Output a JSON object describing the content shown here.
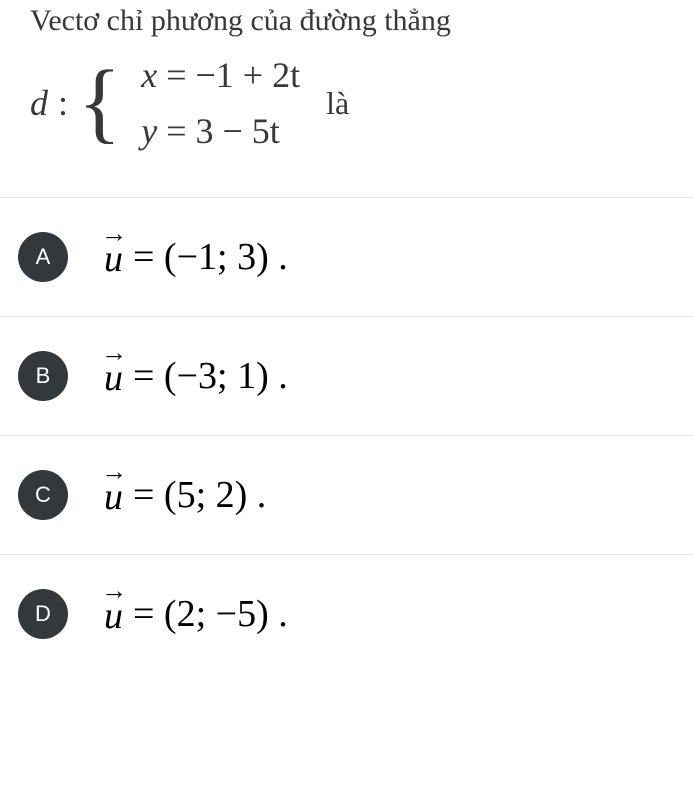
{
  "question": {
    "prompt_line1": "Vectơ chỉ phương của đường thẳng",
    "line_label": "d",
    "eq1_lhs": "x",
    "eq1_rhs": "= −1 + 2t",
    "eq2_lhs": "y",
    "eq2_rhs": "= 3 − 5t",
    "is_text": "là"
  },
  "options": [
    {
      "letter": "A",
      "vector_sym": "u",
      "value": "= (−1; 3) ."
    },
    {
      "letter": "B",
      "vector_sym": "u",
      "value": "= (−3; 1) ."
    },
    {
      "letter": "C",
      "vector_sym": "u",
      "value": "= (5; 2) ."
    },
    {
      "letter": "D",
      "vector_sym": "u",
      "value": "= (2; −5) ."
    }
  ],
  "style": {
    "background_color": "#ffffff",
    "text_color": "#383838",
    "badge_bg": "#33383d",
    "badge_fg": "#ffffff",
    "divider_color": "#e5e5e5",
    "question_fontsize": 30,
    "math_fontsize": 38,
    "badge_diameter": 50
  }
}
